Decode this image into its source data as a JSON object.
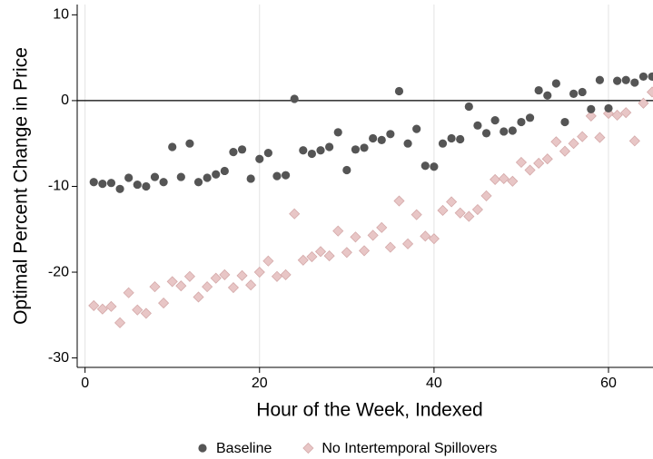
{
  "chart_data": {
    "type": "scatter",
    "xlabel": "Hour of the Week, Indexed",
    "ylabel": "Optimal Percent Change in Price",
    "x": [
      1,
      2,
      3,
      4,
      5,
      6,
      7,
      8,
      9,
      10,
      11,
      12,
      13,
      14,
      15,
      16,
      17,
      18,
      19,
      20,
      21,
      22,
      23,
      24,
      25,
      26,
      27,
      28,
      29,
      30,
      31,
      32,
      33,
      34,
      35,
      36,
      37,
      38,
      39,
      40,
      41,
      42,
      43,
      44,
      45,
      46,
      47,
      48,
      49,
      50,
      51,
      52,
      53,
      54,
      55,
      56,
      57,
      58,
      59,
      60,
      61,
      62,
      63,
      64,
      65
    ],
    "series": [
      {
        "name": "Baseline",
        "color": "#555555",
        "marker": "circle",
        "values": [
          -9.5,
          -9.7,
          -9.6,
          -10.3,
          -9.0,
          -9.8,
          -10.0,
          -8.9,
          -9.5,
          -5.4,
          -8.9,
          -5.0,
          -9.5,
          -9.0,
          -8.6,
          -8.2,
          -6.0,
          -5.7,
          -9.1,
          -6.8,
          -6.1,
          -8.8,
          -8.7,
          0.2,
          -5.8,
          -6.2,
          -5.8,
          -5.4,
          -3.7,
          -8.1,
          -5.7,
          -5.5,
          -4.4,
          -4.6,
          -3.9,
          1.1,
          -5.0,
          -3.3,
          -7.6,
          -7.7,
          -5.0,
          -4.4,
          -4.5,
          -0.7,
          -2.9,
          -3.8,
          -2.3,
          -3.6,
          -3.5,
          -2.5,
          -2.0,
          1.2,
          0.6,
          2.0,
          -2.5,
          0.8,
          1.0,
          -1.0,
          2.4,
          -0.9,
          2.3,
          2.4,
          2.1,
          2.8,
          2.8
        ]
      },
      {
        "name": "No Intertemporal Spillovers",
        "color": "#e8c6c6",
        "marker": "diamond",
        "values": [
          -23.9,
          -24.3,
          -24.0,
          -25.9,
          -22.4,
          -24.4,
          -24.8,
          -21.7,
          -23.6,
          -21.1,
          -21.6,
          -20.5,
          -22.9,
          -21.7,
          -20.7,
          -20.3,
          -21.8,
          -20.4,
          -21.5,
          -20.0,
          -18.7,
          -20.5,
          -20.3,
          -13.2,
          -18.6,
          -18.2,
          -17.6,
          -18.1,
          -15.2,
          -17.7,
          -15.9,
          -17.5,
          -15.7,
          -14.8,
          -17.1,
          -11.7,
          -16.7,
          -13.3,
          -15.8,
          -16.1,
          -12.8,
          -11.8,
          -13.1,
          -13.5,
          -12.7,
          -11.1,
          -9.2,
          -9.1,
          -9.4,
          -7.2,
          -8.1,
          -7.3,
          -6.8,
          -4.8,
          -5.9,
          -5.0,
          -4.2,
          -1.8,
          -4.3,
          -1.5,
          -1.7,
          -1.4,
          -4.7,
          -0.3,
          1.0
        ]
      }
    ],
    "xlim": [
      -0.9,
      65.1
    ],
    "ylim": [
      -31.1,
      11.2
    ],
    "xticks": [
      0,
      20,
      40,
      60
    ],
    "yticks": [
      -30,
      -20,
      -10,
      0,
      10
    ],
    "grid": "x",
    "hline": 0,
    "legend": "bottom"
  }
}
